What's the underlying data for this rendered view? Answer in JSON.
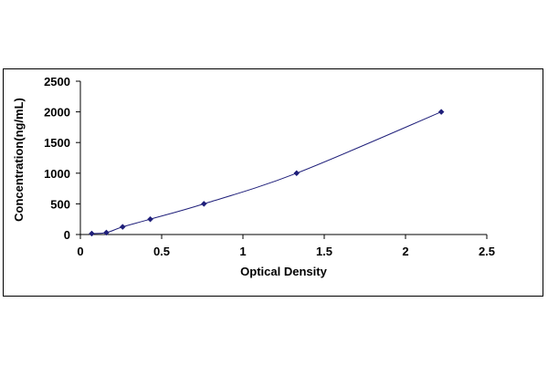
{
  "chart_data": {
    "type": "scatter",
    "title": "",
    "xlabel": "Optical Density",
    "ylabel": "Concentration(ng/mL)",
    "xlim": [
      0,
      2.5
    ],
    "ylim": [
      0,
      2500
    ],
    "x_ticks": [
      "0",
      "0.5",
      "1",
      "1.5",
      "2",
      "2.5"
    ],
    "y_ticks": [
      "0",
      "500",
      "1000",
      "1500",
      "2000",
      "2500"
    ],
    "grid": false,
    "legend": "none",
    "series": [
      {
        "points": [
          {
            "x": 0.07,
            "y": 15.6
          },
          {
            "x": 0.16,
            "y": 31.2
          },
          {
            "x": 0.26,
            "y": 125
          },
          {
            "x": 0.43,
            "y": 250
          },
          {
            "x": 0.76,
            "y": 500
          },
          {
            "x": 1.33,
            "y": 1000
          },
          {
            "x": 2.22,
            "y": 2000
          }
        ],
        "trendline": "smooth"
      }
    ],
    "colors": {
      "marker": "#1f1f7a",
      "line": "#1f1f7a",
      "axis": "#000000"
    }
  }
}
